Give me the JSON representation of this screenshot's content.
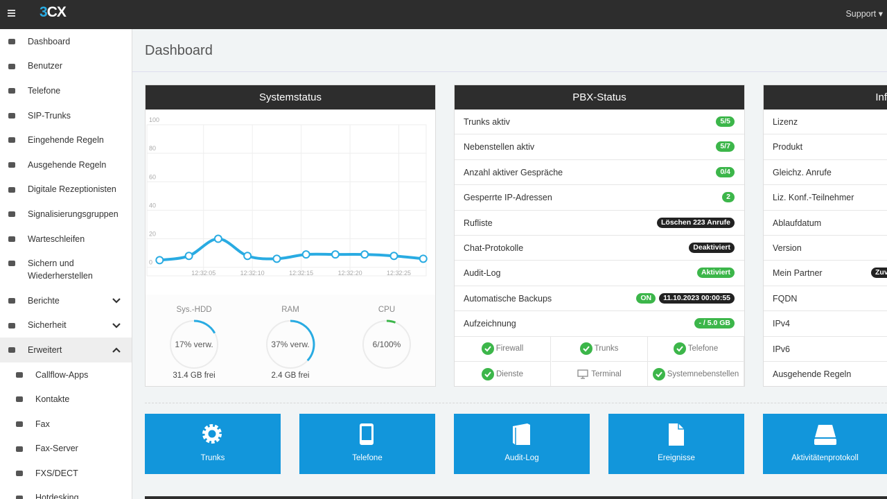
{
  "topbar": {
    "logo": "3CX",
    "menu": "Support"
  },
  "sidebar": {
    "items": [
      {
        "label": "Dashboard"
      },
      {
        "label": "Benutzer"
      },
      {
        "label": "Telefone"
      },
      {
        "label": "SIP-Trunks"
      },
      {
        "label": "Eingehende Regeln"
      },
      {
        "label": "Ausgehende Regeln"
      },
      {
        "label": "Digitale Rezeptionisten"
      },
      {
        "label": "Signalisierungsgruppen"
      },
      {
        "label": "Warteschleifen"
      },
      {
        "label": "Sichern und Wiederherstellen"
      },
      {
        "label": "Berichte",
        "state": "collapsed"
      },
      {
        "label": "Sicherheit",
        "state": "collapsed"
      },
      {
        "label": "Erweitert",
        "state": "expanded",
        "active": true
      }
    ],
    "subitems": [
      {
        "label": "Callflow-Apps"
      },
      {
        "label": "Kontakte"
      },
      {
        "label": "Fax"
      },
      {
        "label": "Fax-Server"
      },
      {
        "label": "FXS/DECT"
      },
      {
        "label": "Hotdesking"
      }
    ]
  },
  "page_title": "Dashboard",
  "systemstatus": {
    "title": "Systemstatus",
    "gauges": [
      {
        "name": "Sys.-HDD",
        "value": 17,
        "value_label": "17% verw.",
        "footer": "31.4 GB frei",
        "color": "#29abe2"
      },
      {
        "name": "RAM",
        "value": 37,
        "value_label": "37% verw.",
        "footer": "2.4 GB frei",
        "color": "#29abe2"
      },
      {
        "name": "CPU",
        "value": 6,
        "value_label": "6/100%",
        "color": "#3cb64a"
      }
    ]
  },
  "chart_data": {
    "type": "line",
    "x": [
      0,
      3,
      6,
      9,
      12,
      15,
      18,
      21,
      24,
      27
    ],
    "series": [
      {
        "color": "#29abe2",
        "values": [
          5,
          8,
          20,
          8,
          6,
          9,
          9,
          9,
          8,
          6
        ]
      }
    ],
    "xlim": [
      -1.3,
      27.3
    ],
    "ylim": [
      -6,
      100
    ],
    "yticks": [
      0,
      20,
      40,
      60,
      80,
      100
    ],
    "xticks": [
      {
        "value": 4.5,
        "label": "12:32:05"
      },
      {
        "value": 9.5,
        "label": "12:32:10"
      },
      {
        "value": 14.5,
        "label": "12:32:15"
      },
      {
        "value": 19.5,
        "label": "12:32:20"
      },
      {
        "value": 24.5,
        "label": "12:32:25"
      }
    ],
    "grid": true
  },
  "pbx": {
    "title": "PBX-Status",
    "rows": [
      {
        "label": "Trunks aktiv",
        "badges": [
          {
            "text": "5/5",
            "color": "#3cb64a"
          }
        ]
      },
      {
        "label": "Nebenstellen aktiv",
        "badges": [
          {
            "text": "5/7",
            "color": "#3cb64a"
          }
        ]
      },
      {
        "label": "Anzahl aktiver Gespräche",
        "badges": [
          {
            "text": "0/4",
            "color": "#3cb64a"
          }
        ]
      },
      {
        "label": "Gesperrte IP-Adressen",
        "badges": [
          {
            "text": "2",
            "color": "#3cb64a"
          }
        ]
      },
      {
        "label": "Rufliste",
        "badges": [
          {
            "text": "Löschen 223 Anrufe",
            "color": "#222222"
          }
        ]
      },
      {
        "label": "Chat-Protokolle",
        "badges": [
          {
            "text": "Deaktiviert",
            "color": "#222222"
          }
        ]
      },
      {
        "label": "Audit-Log",
        "badges": [
          {
            "text": "Aktiviert",
            "color": "#3cb64a"
          }
        ]
      },
      {
        "label": "Automatische Backups",
        "badges": [
          {
            "text": "ON",
            "color": "#3cb64a"
          },
          {
            "text": "11.10.2023 00:00:55",
            "color": "#222222"
          }
        ]
      },
      {
        "label": "Aufzeichnung",
        "badges": [
          {
            "text": "- / 5.0 GB",
            "color": "#3cb64a"
          }
        ]
      }
    ],
    "services": [
      {
        "label": "Firewall",
        "ok": true
      },
      {
        "label": "Trunks",
        "ok": true
      },
      {
        "label": "Telefone",
        "ok": true
      },
      {
        "label": "Dienste",
        "ok": true
      },
      {
        "label": "Terminal",
        "ok": false
      },
      {
        "label": "Systemnebenstellen",
        "ok": true
      }
    ]
  },
  "info": {
    "title": "Inf",
    "rows": [
      {
        "label": "Lizenz"
      },
      {
        "label": "Produkt"
      },
      {
        "label": "Gleichz. Anrufe"
      },
      {
        "label": "Liz. Konf.-Teilnehmer"
      },
      {
        "label": "Ablaufdatum"
      },
      {
        "label": "Version"
      },
      {
        "label": "Mein Partner",
        "badge": "Zuv"
      },
      {
        "label": "FQDN"
      },
      {
        "label": "IPv4"
      },
      {
        "label": "IPv6"
      },
      {
        "label": "Ausgehende Regeln"
      }
    ]
  },
  "tiles": [
    {
      "label": "Trunks",
      "icon": "gear"
    },
    {
      "label": "Telefone",
      "icon": "phone"
    },
    {
      "label": "Audit-Log",
      "icon": "book"
    },
    {
      "label": "Ereignisse",
      "icon": "file"
    },
    {
      "label": "Aktivitätenprotokoll",
      "icon": "drive"
    }
  ]
}
